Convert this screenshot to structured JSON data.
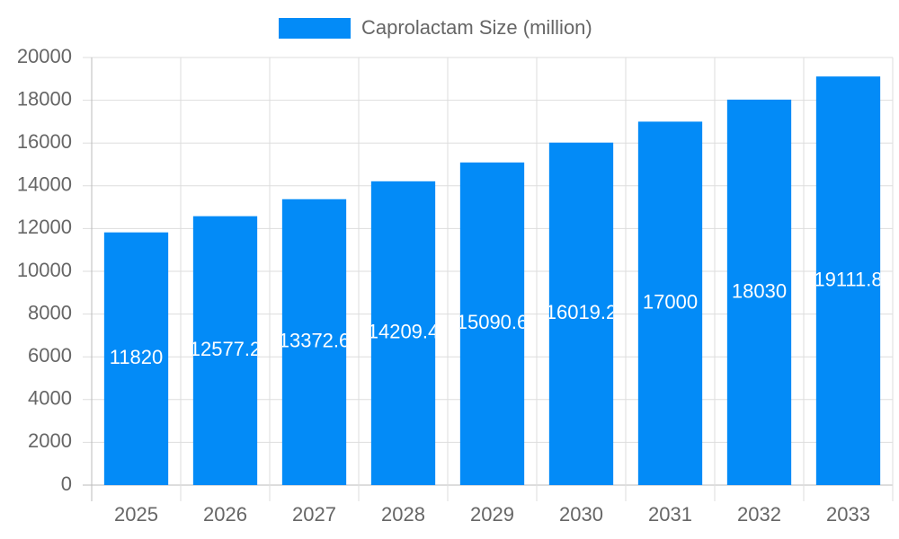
{
  "chart_data": {
    "type": "bar",
    "categories": [
      "2025",
      "2026",
      "2027",
      "2028",
      "2029",
      "2030",
      "2031",
      "2032",
      "2033"
    ],
    "series": [
      {
        "name": "Caprolactam Size (million)",
        "color": "#038bf7",
        "values": [
          11820,
          12577.2,
          13372.6,
          14209.4,
          15090.6,
          16019.2,
          17000,
          18030,
          19111.8
        ]
      }
    ],
    "ylim": [
      0,
      20000
    ],
    "yticks": [
      0,
      2000,
      4000,
      6000,
      8000,
      10000,
      12000,
      14000,
      16000,
      18000,
      20000
    ],
    "grid": true,
    "legend": "top"
  }
}
